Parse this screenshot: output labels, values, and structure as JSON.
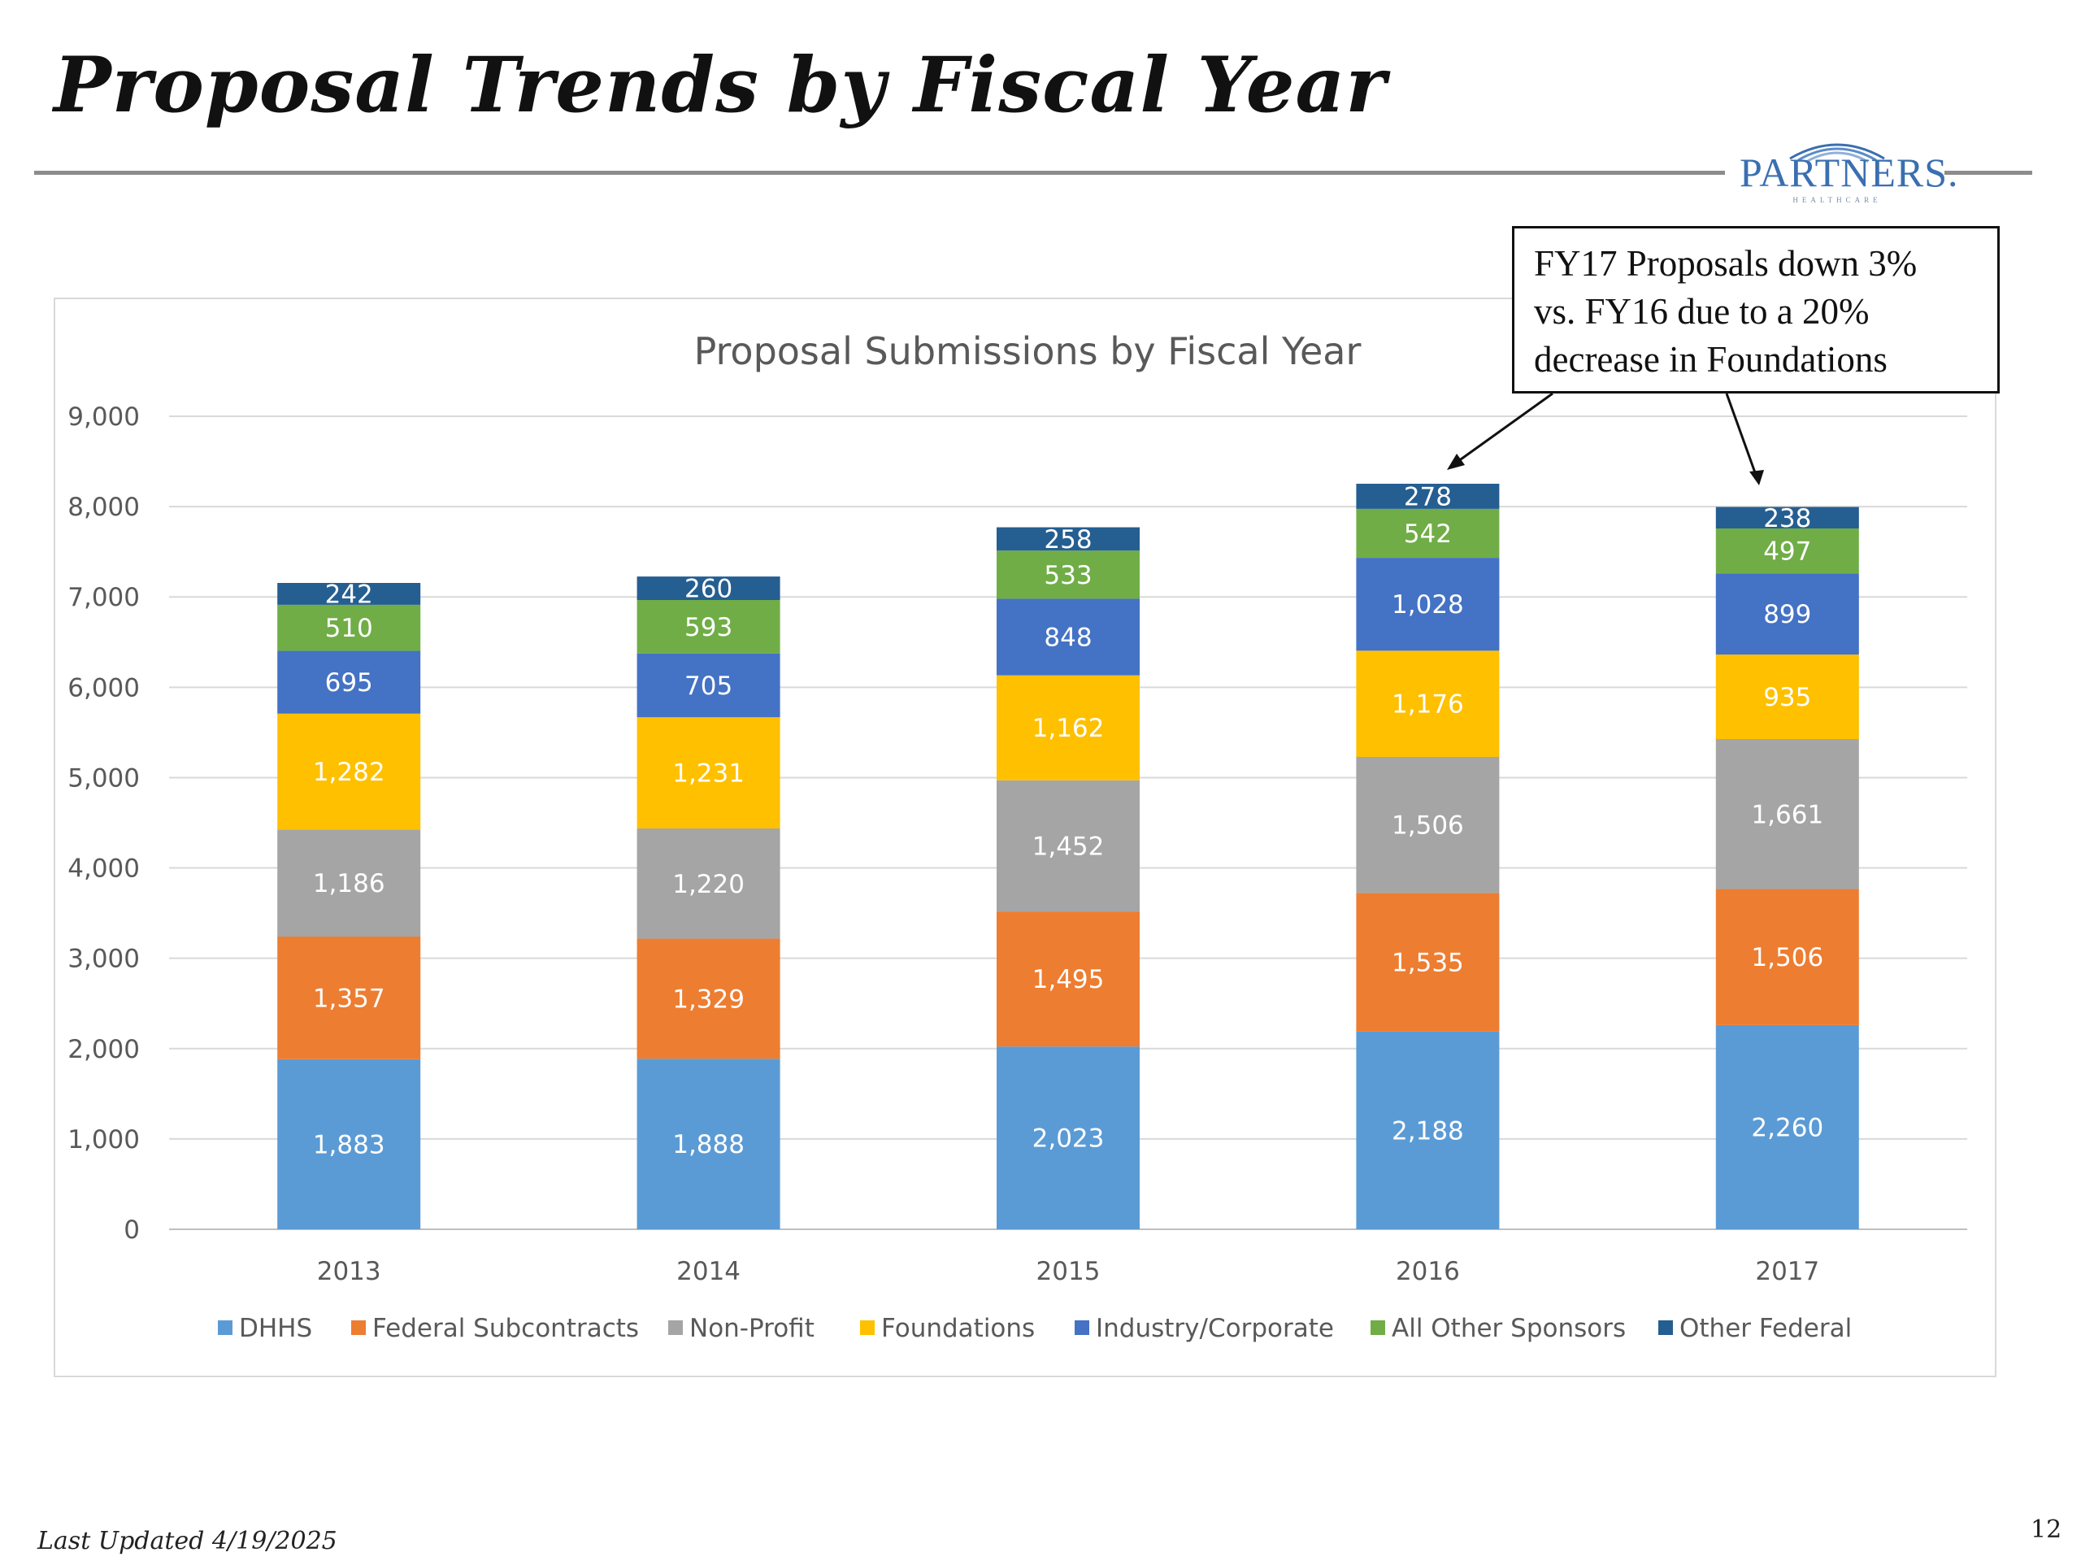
{
  "slide": {
    "title": "Proposal Trends by Fiscal Year",
    "logo_text": "PARTNERS.",
    "logo_subtext": "HEALTHCARE",
    "callout_lines": [
      "FY17 Proposals down 3%",
      "vs. FY16 due to a 20%",
      "decrease in Foundations"
    ],
    "footer": "Last Updated 4/19/2025",
    "page_number": "12"
  },
  "chart_data": {
    "type": "bar",
    "stacked": true,
    "title": "Proposal Submissions by Fiscal Year",
    "xlabel": "",
    "ylabel": "",
    "ylim": [
      0,
      9000
    ],
    "y_ticks": [
      "0",
      "1,000",
      "2,000",
      "3,000",
      "4,000",
      "5,000",
      "6,000",
      "7,000",
      "8,000",
      "9,000"
    ],
    "categories": [
      "2013",
      "2014",
      "2015",
      "2016",
      "2017"
    ],
    "grid": true,
    "legend_position": "bottom",
    "series": [
      {
        "name": "DHHS",
        "color": "#5b9bd5",
        "values": [
          1883,
          1888,
          2023,
          2188,
          2260
        ],
        "labels": [
          "1,883",
          "1,888",
          "2,023",
          "2,188",
          "2,260"
        ]
      },
      {
        "name": "Federal Subcontracts",
        "color": "#ed7d31",
        "values": [
          1357,
          1329,
          1495,
          1535,
          1506
        ],
        "labels": [
          "1,357",
          "1,329",
          "1,495",
          "1,535",
          "1,506"
        ]
      },
      {
        "name": "Non-Profit",
        "color": "#a5a5a5",
        "values": [
          1186,
          1220,
          1452,
          1506,
          1661
        ],
        "labels": [
          "1,186",
          "1,220",
          "1,452",
          "1,506",
          "1,661"
        ]
      },
      {
        "name": "Foundations",
        "color": "#ffc000",
        "values": [
          1282,
          1231,
          1162,
          1176,
          935
        ],
        "labels": [
          "1,282",
          "1,231",
          "1,162",
          "1,176",
          "935"
        ]
      },
      {
        "name": "Industry/Corporate",
        "color": "#4472c4",
        "values": [
          695,
          705,
          848,
          1028,
          899
        ],
        "labels": [
          "695",
          "705",
          "848",
          "1,028",
          "899"
        ]
      },
      {
        "name": "All Other Sponsors",
        "color": "#70ad47",
        "values": [
          510,
          593,
          533,
          542,
          497
        ],
        "labels": [
          "510",
          "593",
          "533",
          "542",
          "497"
        ]
      },
      {
        "name": "Other Federal",
        "color": "#255e91",
        "values": [
          242,
          260,
          258,
          278,
          238
        ],
        "labels": [
          "242",
          "260",
          "258",
          "278",
          "238"
        ]
      }
    ]
  }
}
